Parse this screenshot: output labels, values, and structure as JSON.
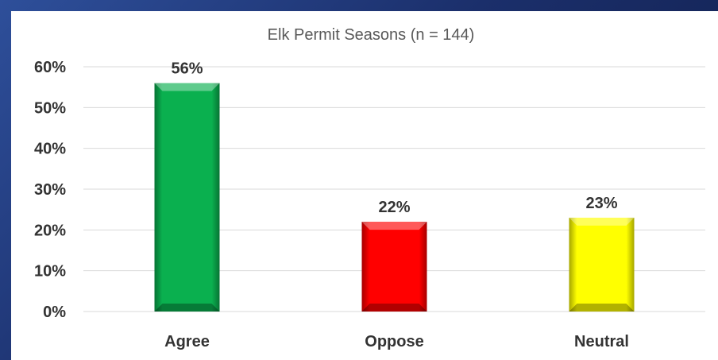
{
  "chart_data": {
    "type": "bar",
    "title": "Elk Permit Seasons (n = 144)",
    "categories": [
      "Agree",
      "Oppose",
      "Neutral"
    ],
    "values": [
      56,
      22,
      23
    ],
    "data_labels": [
      "56%",
      "22%",
      "23%"
    ],
    "colors": [
      "#0ab04f",
      "#ff0000",
      "#ffff00"
    ],
    "ylim": [
      0,
      60
    ],
    "yticks": [
      0,
      10,
      20,
      30,
      40,
      50,
      60
    ],
    "ytick_labels": [
      "0%",
      "10%",
      "20%",
      "30%",
      "40%",
      "50%",
      "60%"
    ],
    "xlabel": "",
    "ylabel": "",
    "grid": true,
    "legend": "none"
  },
  "slide": {
    "background_color": "#1f3577",
    "panel_color": "#ffffff"
  }
}
